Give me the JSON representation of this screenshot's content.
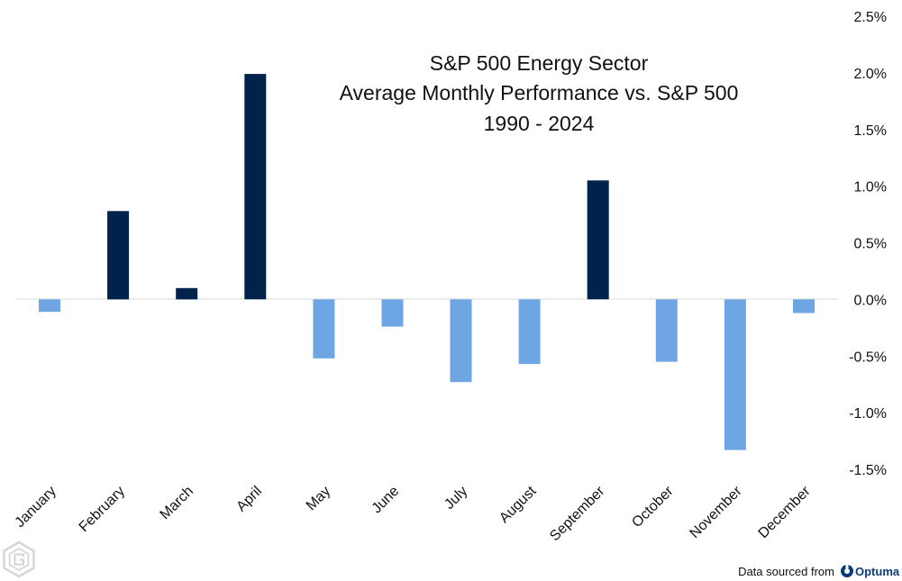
{
  "colors": {
    "positive": "#00234b",
    "negative": "#6ea6e3",
    "axis_line": "#d9d9d9",
    "logo_gray": "#d4d4d4",
    "brand": "#0c3c78"
  },
  "source": {
    "text": "Data sourced from",
    "brand_name": "Optuma",
    "icon": "optuma-logo-icon"
  },
  "watermark_icon": "hexagon-g-logo-icon",
  "chart_data": {
    "type": "bar",
    "title": [
      "S&P 500 Energy Sector",
      "Average Monthly Performance vs. S&P 500",
      "1990 - 2024"
    ],
    "categories": [
      "January",
      "February",
      "March",
      "April",
      "May",
      "June",
      "July",
      "August",
      "September",
      "October",
      "November",
      "December"
    ],
    "values": [
      -0.11,
      0.78,
      0.1,
      1.99,
      -0.52,
      -0.24,
      -0.73,
      -0.57,
      1.05,
      -0.55,
      -1.33,
      -0.12
    ],
    "value_unit": "%",
    "ylim": [
      -1.5,
      2.5
    ],
    "y_ticks": [
      2.5,
      2.0,
      1.5,
      1.0,
      0.5,
      0.0,
      -0.5,
      -1.0,
      -1.5
    ],
    "y_tick_labels": [
      "2.5%",
      "2.0%",
      "1.5%",
      "1.0%",
      "0.5%",
      "0.0%",
      "-0.5%",
      "-1.0%",
      "-1.5%"
    ],
    "y_axis_position": "right",
    "grid": false,
    "legend": "none",
    "xlabel": "",
    "ylabel": ""
  }
}
